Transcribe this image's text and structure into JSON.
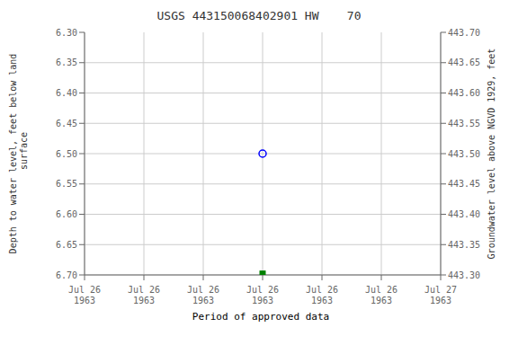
{
  "chart_data": {
    "type": "scatter",
    "title": "USGS 443150068402901 HW    70",
    "ylabel": "Depth to water level, feet below land\n surface",
    "y2label": "Groundwater level above NGVD 1929, feet",
    "categories": [
      "Jul 26\n1963",
      "Jul 26\n1963",
      "Jul 26\n1963",
      "Jul 26\n1963",
      "Jul 26\n1963",
      "Jul 26\n1963",
      "Jul 27\n1963"
    ],
    "series": [
      {
        "color": "#0000ff",
        "marker": "circle",
        "values": [
          null,
          null,
          null,
          6.5,
          null,
          null,
          null
        ]
      },
      {
        "name": "Period of approved data",
        "color": "#008000",
        "marker": "square",
        "values": [
          null,
          null,
          null,
          6.698,
          null,
          null,
          null
        ]
      }
    ],
    "ylim": [
      6.7,
      6.3
    ],
    "yticks": [
      {
        "value": 6.3,
        "label": "6.30"
      },
      6.35,
      {
        "value": 6.4,
        "label": "6.40"
      },
      6.45,
      {
        "value": 6.5,
        "label": "6.50"
      },
      6.55,
      {
        "value": 6.6,
        "label": "6.60"
      },
      6.65,
      {
        "value": 6.7,
        "label": "6.70"
      }
    ],
    "y2lim": [
      443.3,
      443.7
    ],
    "y2ticks": [
      {
        "value": 443.7,
        "label": "443.70"
      },
      443.65,
      {
        "value": 443.6,
        "label": "443.60"
      },
      443.55,
      {
        "value": 443.5,
        "label": "443.50"
      },
      443.45,
      {
        "value": 443.4,
        "label": "443.40"
      },
      443.35,
      {
        "value": 443.3,
        "label": "443.30"
      }
    ],
    "grid": true,
    "legend": "bottom"
  }
}
